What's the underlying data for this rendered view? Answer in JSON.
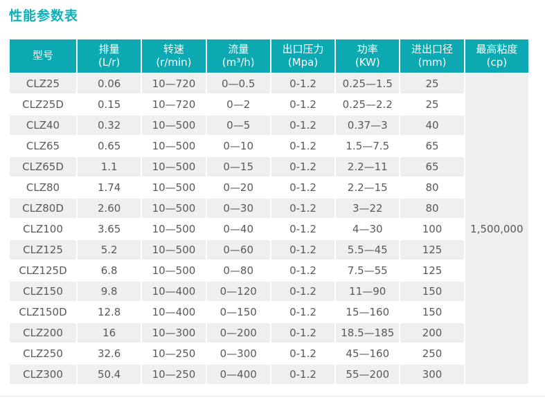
{
  "page": {
    "title": "性能参数表"
  },
  "table": {
    "columns": [
      {
        "label": "型号",
        "unit": ""
      },
      {
        "label": "排量",
        "unit": "(L/r)"
      },
      {
        "label": "转速",
        "unit": "(r/min)"
      },
      {
        "label": "流量",
        "unit": "(m³/h)"
      },
      {
        "label": "出口压力",
        "unit": "(Mpa)"
      },
      {
        "label": "功率",
        "unit": "(KW)"
      },
      {
        "label": "进出口径",
        "unit": "(mm)"
      },
      {
        "label": "最高粘度",
        "unit": "(cp)"
      }
    ],
    "max_viscosity": "1,500,000",
    "rows": [
      [
        "CLZ25",
        "0.06",
        "10—720",
        "0—0.5",
        "0-1.2",
        "0.25—1.5",
        "25"
      ],
      [
        "CLZ25D",
        "0.15",
        "10—720",
        "0—2",
        "0-1.2",
        "0.25—2.2",
        "25"
      ],
      [
        "CLZ40",
        "0.32",
        "10—500",
        "0—5",
        "0-1.2",
        "0.37—3",
        "40"
      ],
      [
        "CLZ65",
        "0.65",
        "10—500",
        "0—10",
        "0-1.2",
        "1.5—7.5",
        "65"
      ],
      [
        "CLZ65D",
        "1.1",
        "10—500",
        "0—15",
        "0-1.2",
        "2.2—11",
        "65"
      ],
      [
        "CLZ80",
        "1.74",
        "10—500",
        "0—20",
        "0-1.2",
        "2.2—15",
        "80"
      ],
      [
        "CLZ80D",
        "2.60",
        "10—500",
        "0—30",
        "0-1.2",
        "3—22",
        "80"
      ],
      [
        "CLZ100",
        "3.65",
        "10—500",
        "0—40",
        "0-1.2",
        "4—30",
        "100"
      ],
      [
        "CLZ125",
        "5.2",
        "10—500",
        "0—60",
        "0-1.2",
        "5.5—45",
        "125"
      ],
      [
        "CLZ125D",
        "6.8",
        "10—500",
        "0—80",
        "0-1.2",
        "7.5—55",
        "125"
      ],
      [
        "CLZ150",
        "9.8",
        "10—400",
        "0—120",
        "0-1.2",
        "11—90",
        "150"
      ],
      [
        "CLZ150D",
        "12.8",
        "10—400",
        "0—150",
        "0-1.2",
        "15—160",
        "150"
      ],
      [
        "CLZ200",
        "16",
        "10—300",
        "0—200",
        "0-1.2",
        "18.5—185",
        "200"
      ],
      [
        "CLZ250",
        "32.6",
        "10—250",
        "0—300",
        "0-1.2",
        "45—160",
        "250"
      ],
      [
        "CLZ300",
        "50.4",
        "10—250",
        "0—400",
        "0-1.2",
        "55—200",
        "300"
      ]
    ],
    "colors": {
      "header_bg": "#0ca9b3",
      "title_color": "#0cb0ba",
      "row_alt_bg": "#efefef",
      "body_text": "#58595b"
    }
  }
}
